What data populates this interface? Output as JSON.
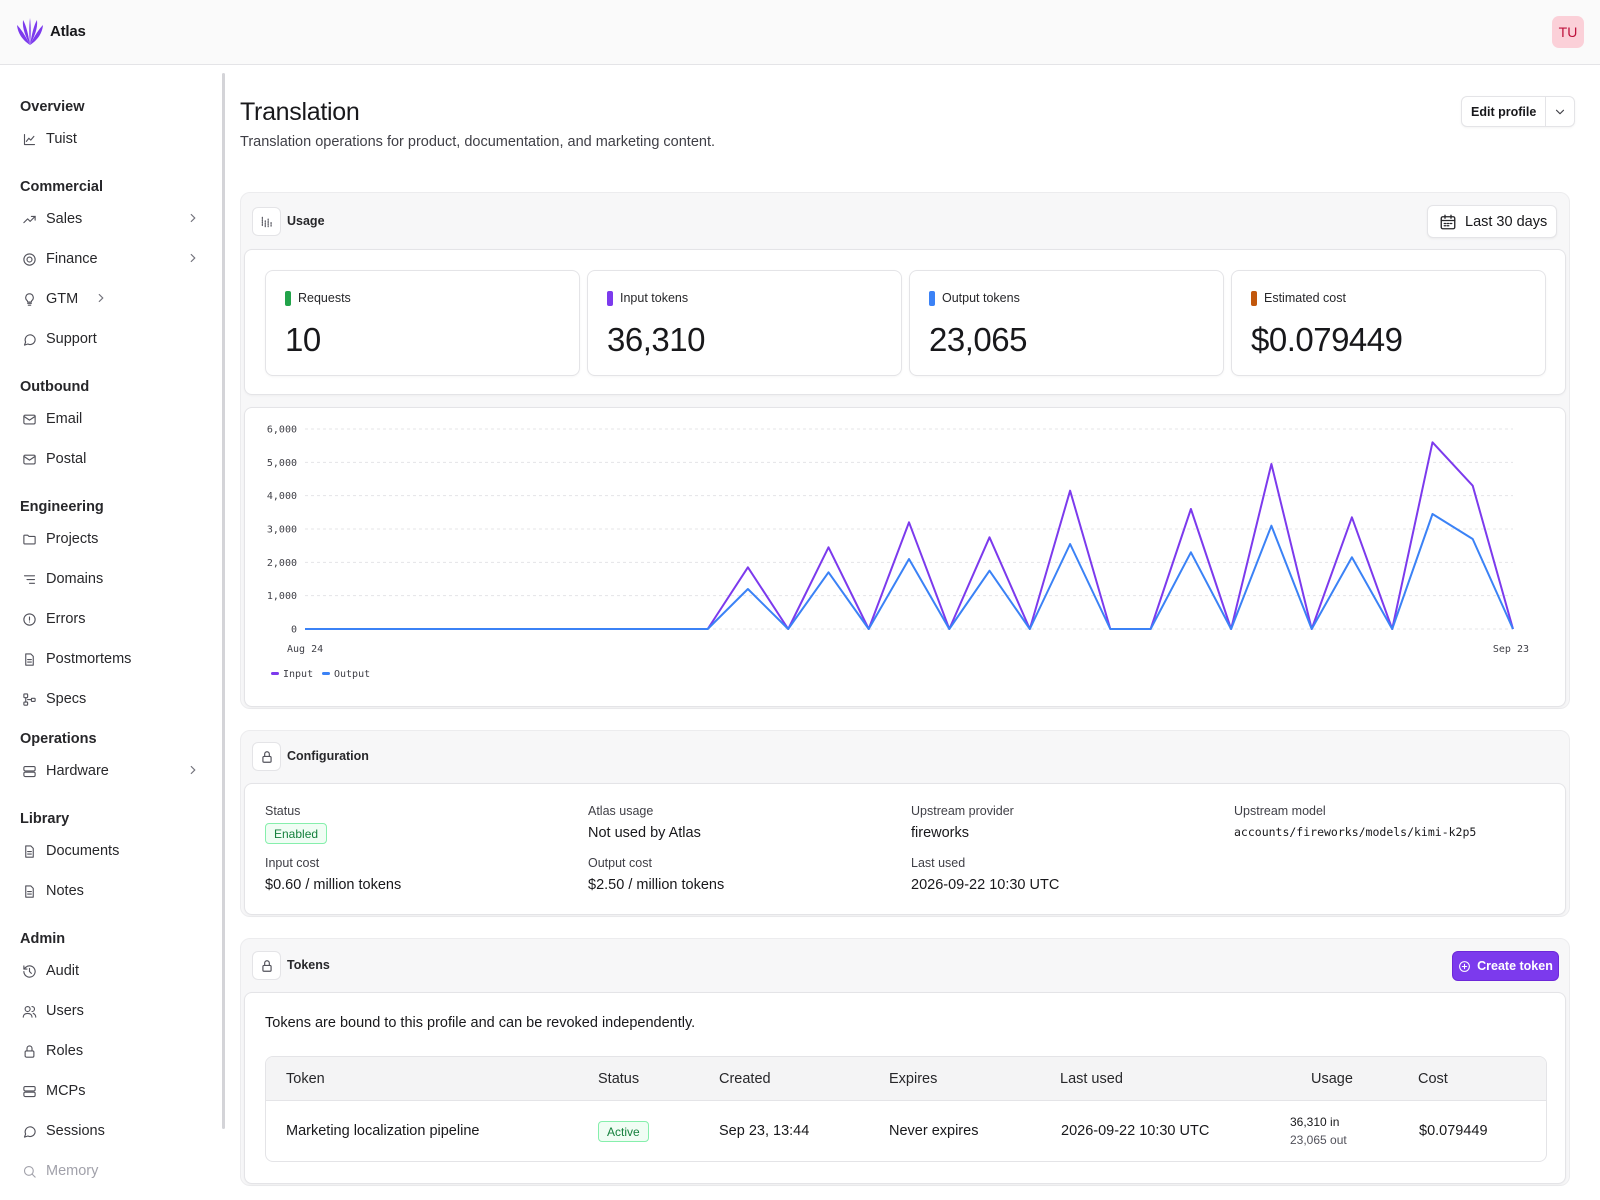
{
  "app": {
    "name": "Atlas",
    "user_initials": "TU"
  },
  "sidebar": {
    "groups": [
      {
        "label": "Overview",
        "items": [
          {
            "label": "Tuist",
            "icon": "chart-line-icon"
          }
        ]
      },
      {
        "label": "Commercial",
        "items": [
          {
            "label": "Sales",
            "icon": "trending-up-icon",
            "expandable": true
          },
          {
            "label": "Finance",
            "icon": "coins-icon",
            "expandable": true
          },
          {
            "label": "GTM",
            "icon": "bulb-icon",
            "expandable": true
          },
          {
            "label": "Support",
            "icon": "message-circle-icon"
          }
        ]
      },
      {
        "label": "Outbound",
        "items": [
          {
            "label": "Email",
            "icon": "mail-icon"
          },
          {
            "label": "Postal",
            "icon": "mail-icon"
          }
        ]
      },
      {
        "label": "Engineering",
        "items": [
          {
            "label": "Projects",
            "icon": "folder-icon"
          },
          {
            "label": "Domains",
            "icon": "list-tree-icon"
          },
          {
            "label": "Errors",
            "icon": "alert-circle-icon"
          },
          {
            "label": "Postmortems",
            "icon": "file-text-icon"
          },
          {
            "label": "Specs",
            "icon": "hierarchy-icon"
          }
        ]
      },
      {
        "label": "Operations",
        "items": [
          {
            "label": "Hardware",
            "icon": "server-icon",
            "expandable": true
          }
        ]
      },
      {
        "label": "Library",
        "items": [
          {
            "label": "Documents",
            "icon": "file-text-icon"
          },
          {
            "label": "Notes",
            "icon": "file-text-icon"
          }
        ]
      },
      {
        "label": "Admin",
        "items": [
          {
            "label": "Audit",
            "icon": "history-icon"
          },
          {
            "label": "Users",
            "icon": "users-icon"
          },
          {
            "label": "Roles",
            "icon": "lock-icon"
          },
          {
            "label": "MCPs",
            "icon": "server-icon"
          },
          {
            "label": "Sessions",
            "icon": "message-circle-icon"
          },
          {
            "label": "Memory",
            "icon": "search-icon"
          }
        ]
      }
    ]
  },
  "page": {
    "title": "Translation",
    "subtitle": "Translation operations for product, documentation, and marketing content.",
    "edit_label": "Edit profile"
  },
  "usage": {
    "label": "Usage",
    "range_label": "Last 30 days",
    "stats": [
      {
        "label": "Requests",
        "value": "10",
        "color": "#22a34a"
      },
      {
        "label": "Input tokens",
        "value": "36,310",
        "color": "#7c3aed"
      },
      {
        "label": "Output tokens",
        "value": "23,065",
        "color": "#3b82f6"
      },
      {
        "label": "Estimated cost",
        "value": "$0.079449",
        "color": "#c2570c"
      }
    ]
  },
  "chart_data": {
    "type": "line",
    "x_labels": [
      "Aug 24",
      "Sep 23"
    ],
    "ylim": [
      0,
      6000
    ],
    "y_ticks": [
      "0",
      "1,000",
      "2,000",
      "3,000",
      "4,000",
      "5,000",
      "6,000"
    ],
    "grid": true,
    "legend": "bottom-left",
    "series": [
      {
        "name": "Input",
        "color": "#7c3aed",
        "values": [
          0,
          0,
          0,
          0,
          0,
          0,
          0,
          0,
          0,
          0,
          0,
          1850,
          0,
          2450,
          0,
          3200,
          0,
          2750,
          0,
          4150,
          0,
          0,
          3600,
          0,
          4950,
          0,
          3350,
          0,
          5600,
          4300,
          0
        ]
      },
      {
        "name": "Output",
        "color": "#3b82f6",
        "values": [
          0,
          0,
          0,
          0,
          0,
          0,
          0,
          0,
          0,
          0,
          0,
          1200,
          0,
          1700,
          0,
          2100,
          0,
          1750,
          0,
          2550,
          0,
          0,
          2300,
          0,
          3100,
          0,
          2150,
          0,
          3450,
          2700,
          0
        ]
      }
    ]
  },
  "configuration": {
    "label": "Configuration",
    "status_label": "Status",
    "status_value": "Enabled",
    "atlas_usage_label": "Atlas usage",
    "atlas_usage_value": "Not used by Atlas",
    "provider_label": "Upstream provider",
    "provider_value": "fireworks",
    "model_label": "Upstream model",
    "model_value": "accounts/fireworks/models/kimi-k2p5",
    "input_cost_label": "Input cost",
    "input_cost_value": "$0.60 / million tokens",
    "output_cost_label": "Output cost",
    "output_cost_value": "$2.50 / million tokens",
    "last_used_label": "Last used",
    "last_used_value": "2026-09-22 10:30 UTC"
  },
  "tokens": {
    "label": "Tokens",
    "create_label": "Create token",
    "description": "Tokens are bound to this profile and can be revoked independently.",
    "columns": [
      "Token",
      "Status",
      "Created",
      "Expires",
      "Last used",
      "Usage",
      "Cost"
    ],
    "rows": [
      {
        "name": "Marketing localization pipeline",
        "status": "Active",
        "created": "Sep 23, 13:44",
        "expires": "Never expires",
        "last_used": "2026-09-22 10:30 UTC",
        "usage_in": "36,310 in",
        "usage_out": "23,065 out",
        "cost": "$0.079449"
      }
    ]
  }
}
